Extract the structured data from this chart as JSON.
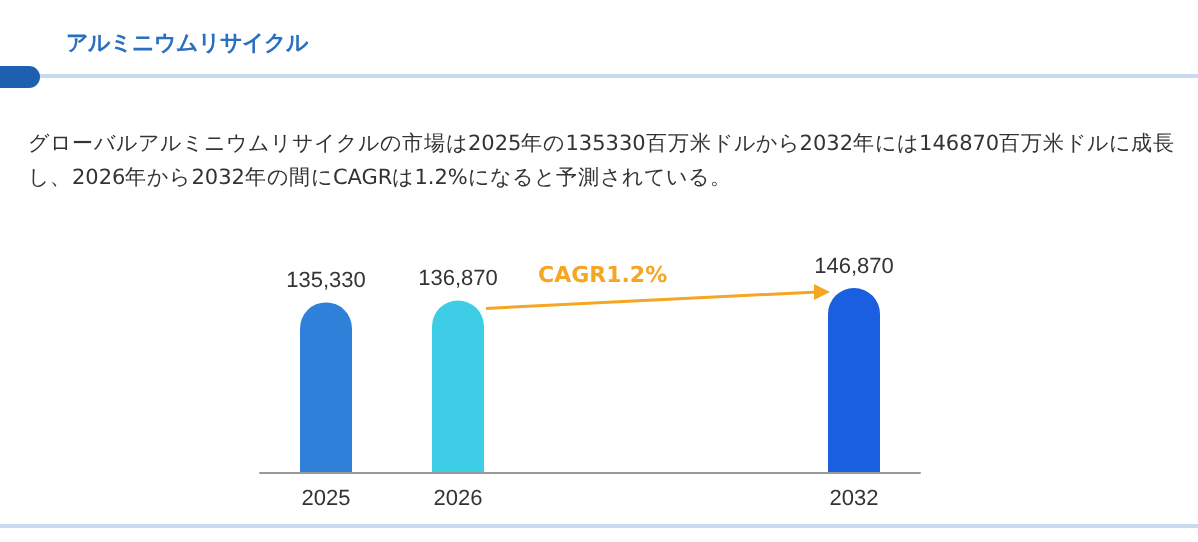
{
  "chart_data": {
    "type": "bar",
    "title": "アルミニウムリサイクル",
    "subtitle": "グローバルアルミニウムリサイクルの市場は2025年の135330百万米ドルから2032年には146870百万米ドルに成長し、2026年から2032年の間にCAGRは1.2%になると予測されている。",
    "categories": [
      "2025",
      "2026",
      null,
      null,
      "2032"
    ],
    "values": [
      135330,
      136870,
      null,
      null,
      146870
    ],
    "colors": [
      "#2f80d8",
      "#3ecde6",
      null,
      null,
      "#1a5fe0"
    ],
    "value_labels": [
      "135,330",
      "136,870",
      null,
      null,
      "146,870"
    ],
    "annotations": [
      "CAGR1.2%"
    ]
  }
}
